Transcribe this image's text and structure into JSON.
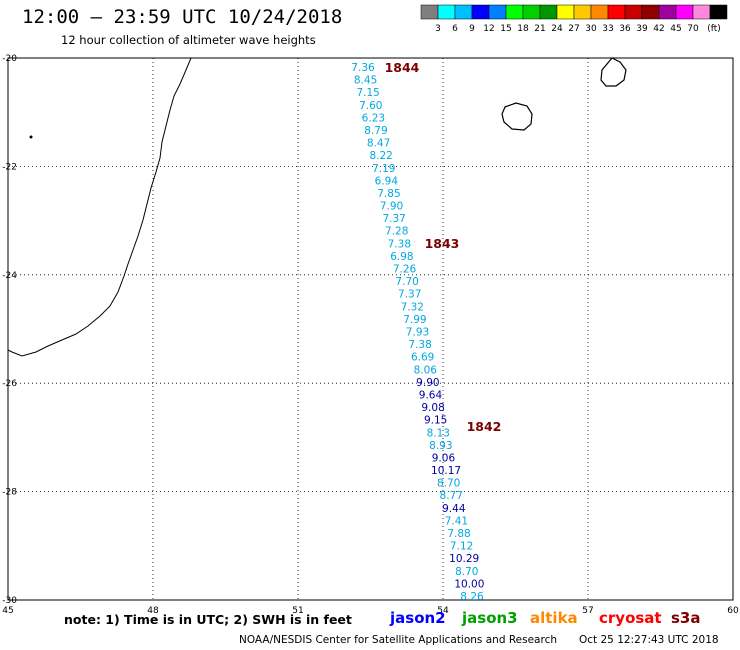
{
  "header": {
    "title": "12:00 – 23:59 UTC 10/24/2018",
    "subtitle": "12 hour collection of altimeter wave heights"
  },
  "legend": {
    "unit": "(ft)",
    "colors": [
      "#7f7f7f",
      "#00ffff",
      "#00bfff",
      "#0000ff",
      "#0080ff",
      "#00ff00",
      "#00d000",
      "#009800",
      "#ffff00",
      "#ffc800",
      "#ff8800",
      "#ff0000",
      "#c80000",
      "#900000",
      "#a000a0",
      "#ff00ff",
      "#ff88dd",
      "#000000"
    ],
    "labels": [
      "3",
      "6",
      "9",
      "12",
      "15",
      "18",
      "21",
      "24",
      "27",
      "30",
      "33",
      "36",
      "39",
      "42",
      "45",
      "70"
    ]
  },
  "map": {
    "lon_range": [
      45,
      60
    ],
    "lat_range": [
      -30,
      -20
    ],
    "lon_ticks": [
      "45",
      "48",
      "51",
      "54",
      "57",
      "60"
    ],
    "lat_ticks": [
      "-20",
      "-22",
      "-24",
      "-26",
      "-28",
      "-30"
    ],
    "passes": [
      {
        "id": "1844",
        "color": "#000000"
      },
      {
        "id": "1843",
        "color": "#000000"
      },
      {
        "id": "1842",
        "color": "#000000"
      }
    ],
    "labels": [
      "1844",
      "1843",
      "1842"
    ],
    "swh_cyan": [
      "7.36",
      "8.45",
      "7.15",
      "7.60",
      "6.23",
      "8.79",
      "8.47",
      "8.22",
      "7.19",
      "6.94",
      "7.85",
      "7.90",
      "7.37",
      "7.28",
      "7.38",
      "6.98",
      "7.26",
      "7.70",
      "7.37",
      "7.32",
      "7.99",
      "7.93",
      "7.38",
      "6.69",
      "8.06"
    ],
    "swh_blue1": [
      "9.90",
      "9.64",
      "9.08",
      "9.15"
    ],
    "swh_cyan2": [
      "8.13",
      "8.93"
    ],
    "swh_blue2": [
      "9.06",
      "10.17"
    ],
    "swh_cyan3": [
      "8.70",
      "8.77"
    ],
    "swh_blue3": [
      "9.44"
    ],
    "swh_cyan4": [
      "7.41",
      "7.88",
      "7.12"
    ],
    "swh_blue4": [
      "10.29"
    ],
    "swh_cyan5": [
      "8.70"
    ],
    "swh_blue5": [
      "10.00"
    ],
    "swh_cyan6": [
      "8.26"
    ],
    "cyan_color": "#00a8e0",
    "blue_color": "#0000a0",
    "label_color": "#7a0000"
  },
  "footer": {
    "note": "note:  1) Time is in UTC;  2) SWH is in feet",
    "satellites": [
      {
        "name": "jason2",
        "color": "#0000ff"
      },
      {
        "name": "jason3",
        "color": "#00a000"
      },
      {
        "name": "altika",
        "color": "#ff8800"
      },
      {
        "name": "cryosat",
        "color": "#ff0000"
      },
      {
        "name": "s3a",
        "color": "#800000"
      }
    ],
    "credit": "NOAA/NESDIS Center for Satellite Applications and Research",
    "timestamp": "Oct 25 12:27:43 UTC 2018"
  }
}
